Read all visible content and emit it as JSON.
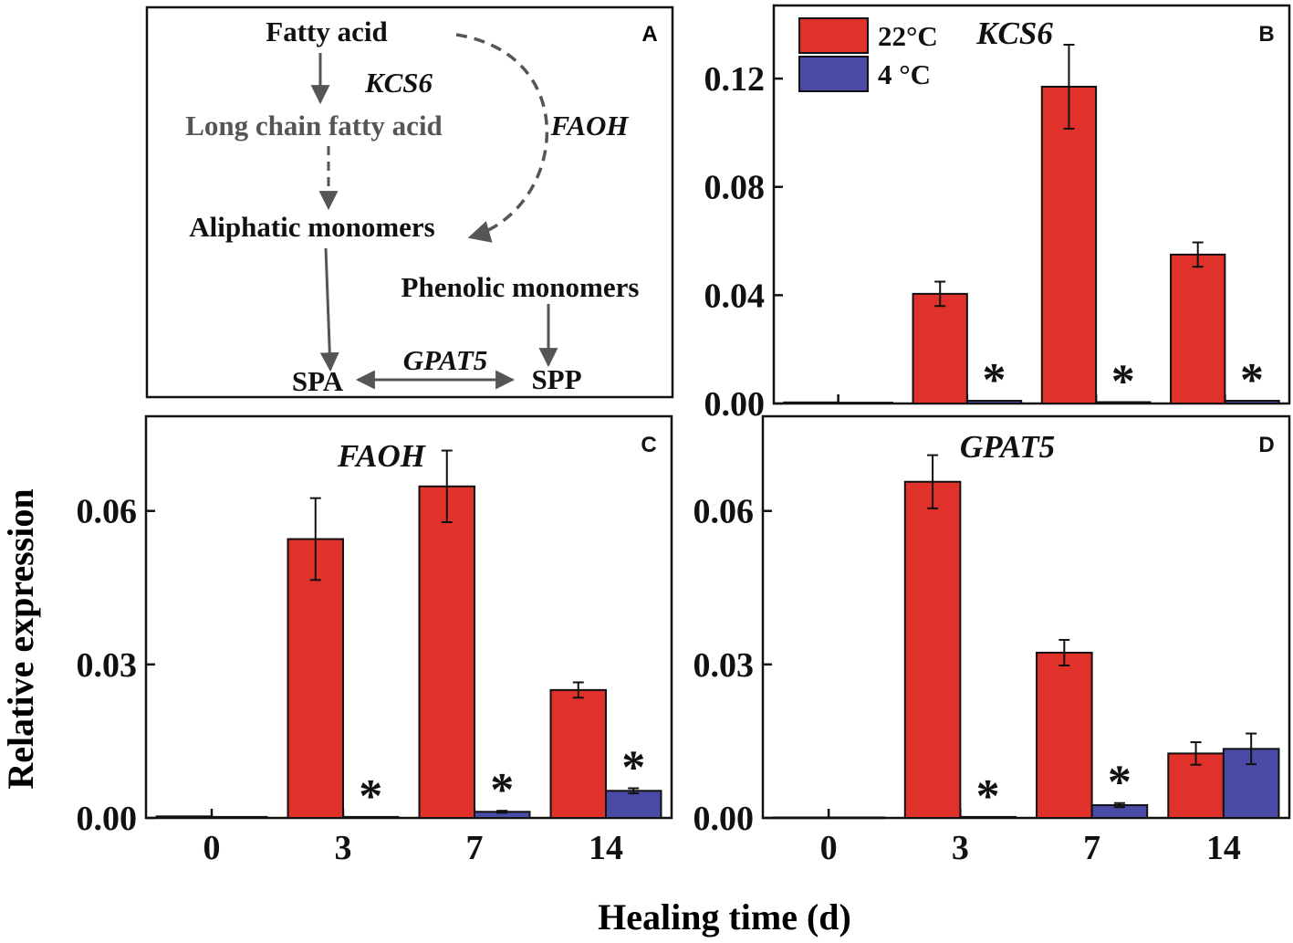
{
  "figure": {
    "ylabel": "Relative expression",
    "xlabel": "Healing time (d)",
    "legend": [
      {
        "label": "22°C",
        "color": "#e0312a"
      },
      {
        "label": "4 °C",
        "color": "#4a4ba6"
      }
    ],
    "colors": {
      "warm": "#e0312a",
      "cold": "#4a4ba6",
      "axis": "#111111",
      "arrow": "#555555"
    },
    "significance_marker": "*"
  },
  "diagram": {
    "panel_label": "A",
    "nodes": {
      "fatty_acid": "Fatty acid",
      "long_chain": "Long chain fatty acid",
      "aliphatic": "Aliphatic monomers",
      "phenolic": "Phenolic monomers",
      "spa": "SPA",
      "spp": "SPP"
    },
    "enzymes": {
      "kcs6": "KCS6",
      "faoh": "FAOH",
      "gpat5": "GPAT5"
    }
  },
  "chart_data": [
    {
      "panel": "B",
      "type": "bar",
      "title": "KCS6",
      "categories": [
        "0",
        "3",
        "7",
        "14"
      ],
      "series": [
        {
          "name": "22°C",
          "values": [
            0.0004,
            0.0405,
            0.117,
            0.055
          ],
          "errors": [
            0,
            0.0045,
            0.0155,
            0.0045
          ]
        },
        {
          "name": "4 °C",
          "values": [
            0.0003,
            0.001,
            0.0005,
            0.001
          ],
          "errors": [
            0,
            0,
            0,
            0
          ]
        }
      ],
      "significant": [
        false,
        true,
        true,
        true
      ],
      "yticks": [
        0.0,
        0.04,
        0.08,
        0.12
      ],
      "ytick_labels": [
        "0.00",
        "0.04",
        "0.08",
        "0.12"
      ],
      "ylim": [
        0,
        0.147
      ]
    },
    {
      "panel": "C",
      "type": "bar",
      "title": "FAOH",
      "categories": [
        "0",
        "3",
        "7",
        "14"
      ],
      "series": [
        {
          "name": "22°C",
          "values": [
            0.0003,
            0.0545,
            0.0648,
            0.025
          ],
          "errors": [
            0,
            0.008,
            0.007,
            0.0015
          ]
        },
        {
          "name": "4 °C",
          "values": [
            0.0002,
            0.0002,
            0.0012,
            0.0053
          ],
          "errors": [
            0,
            0,
            0.0002,
            0.0005
          ]
        }
      ],
      "significant": [
        false,
        true,
        true,
        true
      ],
      "yticks": [
        0.0,
        0.03,
        0.06
      ],
      "ytick_labels": [
        "0.00",
        "0.03",
        "0.06"
      ],
      "ylim": [
        0,
        0.0785
      ]
    },
    {
      "panel": "D",
      "type": "bar",
      "title": "GPAT5",
      "categories": [
        "0",
        "3",
        "7",
        "14"
      ],
      "series": [
        {
          "name": "22°C",
          "values": [
            0.0001,
            0.0657,
            0.0323,
            0.0126
          ],
          "errors": [
            0,
            0.0052,
            0.0025,
            0.0022
          ]
        },
        {
          "name": "4 °C",
          "values": [
            0.0001,
            0.0002,
            0.0025,
            0.0135
          ],
          "errors": [
            0,
            0,
            0.0004,
            0.003
          ]
        }
      ],
      "significant": [
        false,
        true,
        true,
        false
      ],
      "yticks": [
        0.0,
        0.03,
        0.06
      ],
      "ytick_labels": [
        "0.00",
        "0.03",
        "0.06"
      ],
      "ylim": [
        0,
        0.0785
      ]
    }
  ]
}
